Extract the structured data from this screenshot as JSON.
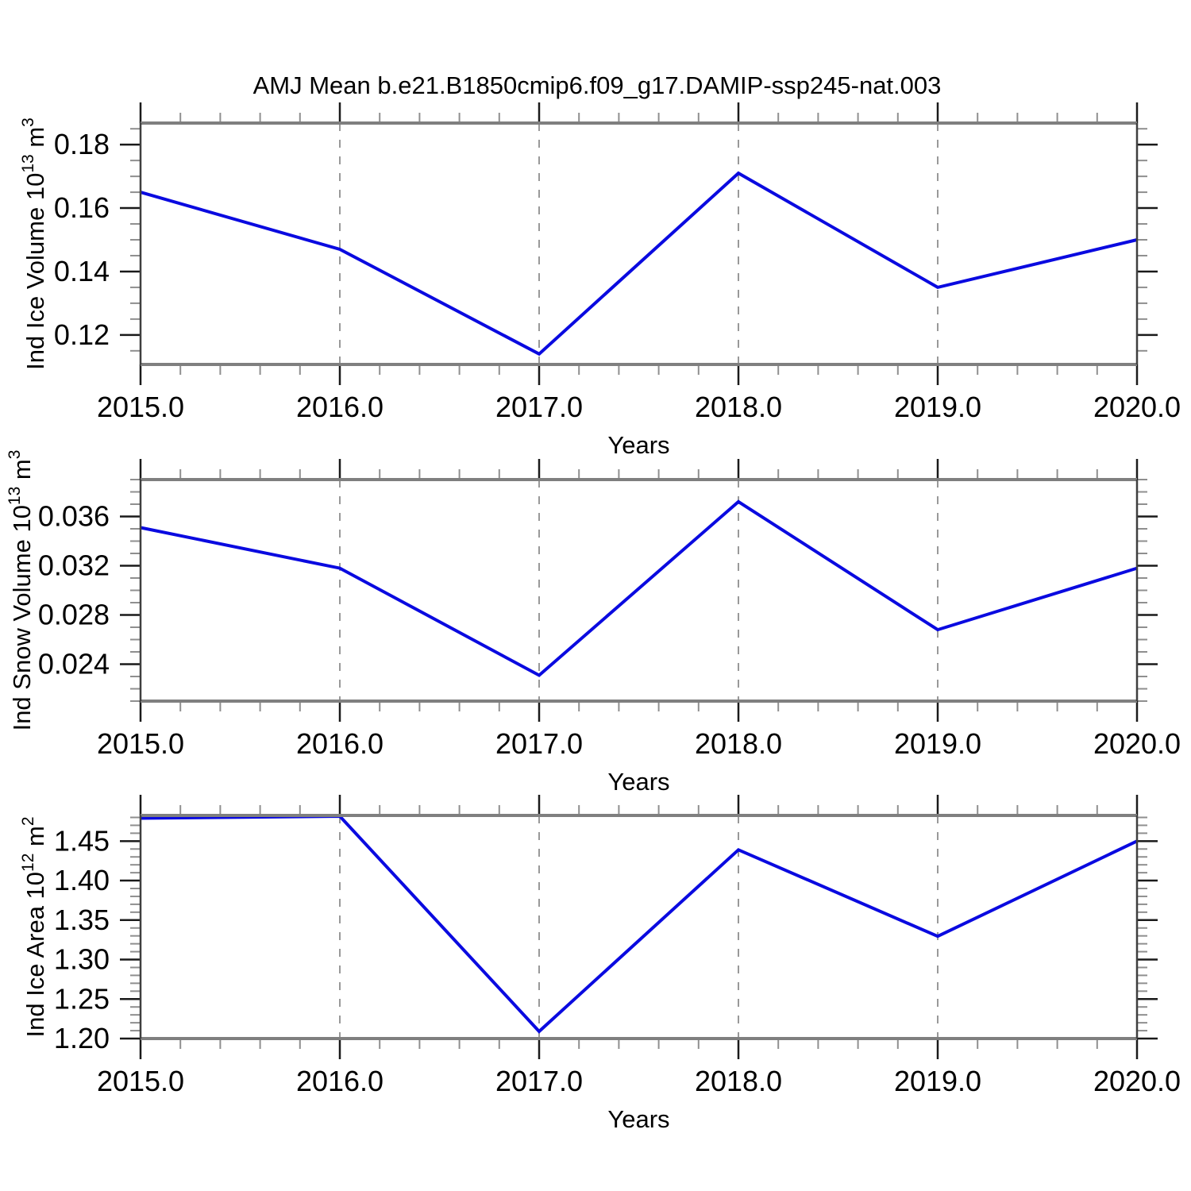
{
  "figure": {
    "title": "AMJ Mean b.e21.B1850cmip6.f09_g17.DAMIP-ssp245-nat.003",
    "background": "#ffffff"
  },
  "colors": {
    "line": "#0a0ae0",
    "frame_horizontal": "#7f7f7f",
    "frame_vertical": "#3f3f3f",
    "tick_major": "#1a1a1a",
    "tick_minor": "#8f8f8f",
    "grid": "#999999",
    "text": "#000000"
  },
  "chart_data": [
    {
      "type": "line",
      "ylabel_segments": [
        {
          "text": "Ind Ice Volume 10"
        },
        {
          "text": "13",
          "sup": true
        },
        {
          "text": " m"
        },
        {
          "text": "3",
          "sup": true
        }
      ],
      "xlabel": "Years",
      "x": [
        2015,
        2016,
        2017,
        2018,
        2019,
        2020
      ],
      "y": [
        0.165,
        0.147,
        0.114,
        0.171,
        0.135,
        0.15
      ],
      "xlim": [
        2015,
        2020
      ],
      "ylim": [
        0.1107,
        0.1868
      ],
      "xticks": [
        2015,
        2016,
        2017,
        2018,
        2019,
        2020
      ],
      "xtick_labels": [
        "2015.0",
        "2016.0",
        "2017.0",
        "2018.0",
        "2019.0",
        "2020.0"
      ],
      "xminor_step": 0.2,
      "yticks": [
        0.12,
        0.14,
        0.16,
        0.18
      ],
      "ytick_labels": [
        "0.12",
        "0.14",
        "0.16",
        "0.18"
      ],
      "yminor_step": 0.005,
      "grid_x": [
        2016,
        2017,
        2018,
        2019
      ],
      "grid_on": true,
      "legend": "none"
    },
    {
      "type": "line",
      "ylabel_segments": [
        {
          "text": "Ind Snow Volume 10"
        },
        {
          "text": "13",
          "sup": true
        },
        {
          "text": " m"
        },
        {
          "text": "3",
          "sup": true
        }
      ],
      "xlabel": "Years",
      "x": [
        2015,
        2016,
        2017,
        2018,
        2019,
        2020
      ],
      "y": [
        0.0351,
        0.0318,
        0.0231,
        0.0372,
        0.0268,
        0.0318
      ],
      "xlim": [
        2015,
        2020
      ],
      "ylim": [
        0.021,
        0.039
      ],
      "xticks": [
        2015,
        2016,
        2017,
        2018,
        2019,
        2020
      ],
      "xtick_labels": [
        "2015.0",
        "2016.0",
        "2017.0",
        "2018.0",
        "2019.0",
        "2020.0"
      ],
      "xminor_step": 0.2,
      "yticks": [
        0.024,
        0.028,
        0.032,
        0.036
      ],
      "ytick_labels": [
        "0.024",
        "0.028",
        "0.032",
        "0.036"
      ],
      "yminor_step": 0.001,
      "grid_x": [
        2016,
        2017,
        2018,
        2019
      ],
      "grid_on": true,
      "legend": "none"
    },
    {
      "type": "line",
      "ylabel_segments": [
        {
          "text": "Ind Ice Area 10"
        },
        {
          "text": "12",
          "sup": true
        },
        {
          "text": " m"
        },
        {
          "text": "2",
          "sup": true
        }
      ],
      "xlabel": "Years",
      "x": [
        2015,
        2016,
        2017,
        2018,
        2019,
        2020
      ],
      "y": [
        1.479,
        1.4815,
        1.209,
        1.439,
        1.3295,
        1.45
      ],
      "xlim": [
        2015,
        2020
      ],
      "ylim": [
        1.2,
        1.4825
      ],
      "xticks": [
        2015,
        2016,
        2017,
        2018,
        2019,
        2020
      ],
      "xtick_labels": [
        "2015.0",
        "2016.0",
        "2017.0",
        "2018.0",
        "2019.0",
        "2020.0"
      ],
      "xminor_step": 0.2,
      "yticks": [
        1.2,
        1.25,
        1.3,
        1.35,
        1.4,
        1.45
      ],
      "ytick_labels": [
        "1.20",
        "1.25",
        "1.30",
        "1.35",
        "1.40",
        "1.45"
      ],
      "yminor_step": 0.01,
      "grid_x": [
        2016,
        2017,
        2018,
        2019
      ],
      "grid_on": true,
      "legend": "none"
    }
  ]
}
